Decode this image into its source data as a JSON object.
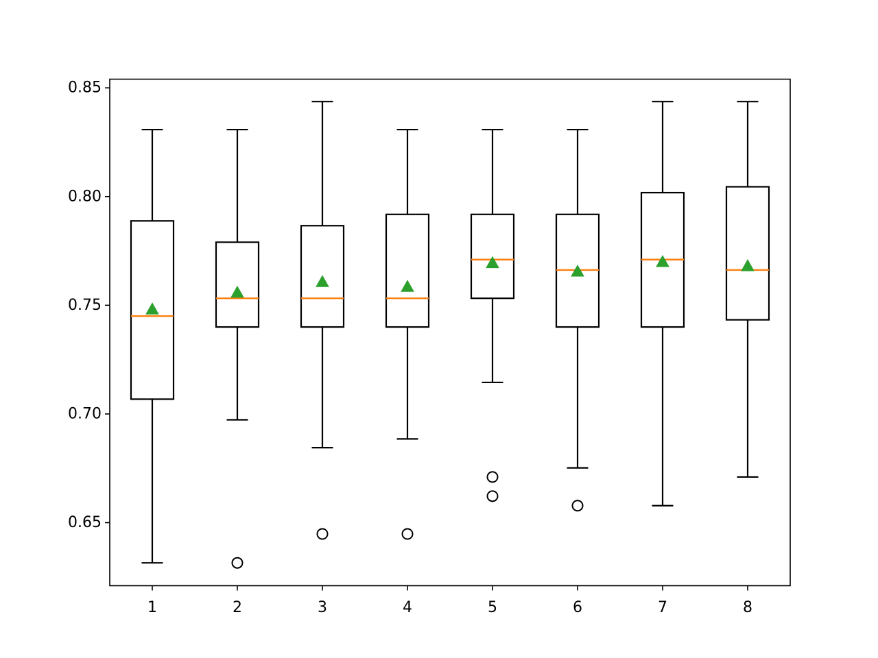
{
  "chart_data": {
    "type": "boxplot",
    "categories": [
      "1",
      "2",
      "3",
      "4",
      "5",
      "6",
      "7",
      "8"
    ],
    "ylim": [
      0.621,
      0.854
    ],
    "yticks": [
      "0.65",
      "0.70",
      "0.75",
      "0.80",
      "0.85"
    ],
    "grid": false,
    "colors": {
      "median": "#ff7f0e",
      "mean": "#2ca02c",
      "box": "#000000"
    },
    "boxes": [
      {
        "label": "1",
        "whisker_low": 0.6315,
        "q1": 0.7068,
        "median": 0.745,
        "q3": 0.7888,
        "whisker_high": 0.8308,
        "mean": 0.748,
        "outliers": []
      },
      {
        "label": "2",
        "whisker_low": 0.6973,
        "q1": 0.74,
        "median": 0.7532,
        "q3": 0.779,
        "whisker_high": 0.8308,
        "mean": 0.7557,
        "outliers": [
          0.6315
        ]
      },
      {
        "label": "3",
        "whisker_low": 0.6845,
        "q1": 0.74,
        "median": 0.7532,
        "q3": 0.7866,
        "whisker_high": 0.8437,
        "mean": 0.7606,
        "outliers": [
          0.6448
        ]
      },
      {
        "label": "4",
        "whisker_low": 0.6885,
        "q1": 0.74,
        "median": 0.7532,
        "q3": 0.7918,
        "whisker_high": 0.8308,
        "mean": 0.7584,
        "outliers": [
          0.6448
        ]
      },
      {
        "label": "5",
        "whisker_low": 0.7145,
        "q1": 0.7532,
        "median": 0.771,
        "q3": 0.7918,
        "whisker_high": 0.8308,
        "mean": 0.7693,
        "outliers": [
          0.671,
          0.6622
        ]
      },
      {
        "label": "6",
        "whisker_low": 0.6752,
        "q1": 0.74,
        "median": 0.7662,
        "q3": 0.7918,
        "whisker_high": 0.8308,
        "mean": 0.7654,
        "outliers": [
          0.6578
        ]
      },
      {
        "label": "7",
        "whisker_low": 0.6578,
        "q1": 0.74,
        "median": 0.771,
        "q3": 0.8018,
        "whisker_high": 0.8437,
        "mean": 0.7698,
        "outliers": []
      },
      {
        "label": "8",
        "whisker_low": 0.671,
        "q1": 0.7433,
        "median": 0.7662,
        "q3": 0.8045,
        "whisker_high": 0.8437,
        "mean": 0.7679,
        "outliers": []
      }
    ]
  }
}
